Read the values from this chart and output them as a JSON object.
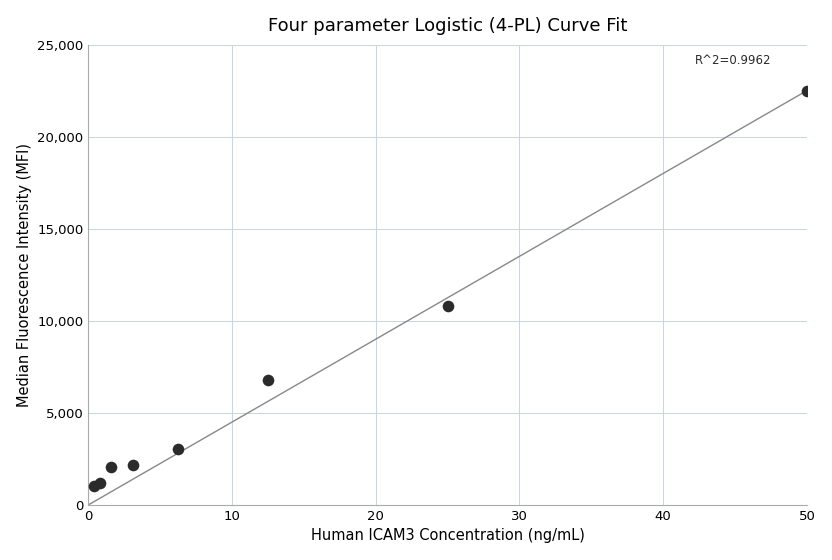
{
  "title": "Four parameter Logistic (4-PL) Curve Fit",
  "xlabel": "Human ICAM3 Concentration (ng/mL)",
  "ylabel": "Median Fluorescence Intensity (MFI)",
  "scatter_x": [
    0.39,
    0.78,
    1.56,
    3.13,
    6.25,
    12.5,
    25.0,
    50.0
  ],
  "scatter_y": [
    1050,
    1200,
    2050,
    2150,
    3050,
    6800,
    10800,
    22500
  ],
  "line_x": [
    0.0,
    50.0
  ],
  "line_y": [
    0.0,
    22500.0
  ],
  "xlim": [
    0,
    50
  ],
  "ylim": [
    0,
    25000
  ],
  "xticks": [
    0,
    10,
    20,
    30,
    40,
    50
  ],
  "yticks": [
    0,
    5000,
    10000,
    15000,
    20000,
    25000
  ],
  "r2_text": "R^2=0.9962",
  "r2_x": 47.5,
  "r2_y": 23800,
  "dot_color": "#2b2b2b",
  "line_color": "#888888",
  "background_color": "#ffffff",
  "grid_color": "#c8d4e3",
  "title_fontsize": 13,
  "label_fontsize": 10.5,
  "tick_fontsize": 9.5,
  "dot_size": 70,
  "annotation_fontsize": 8.5
}
